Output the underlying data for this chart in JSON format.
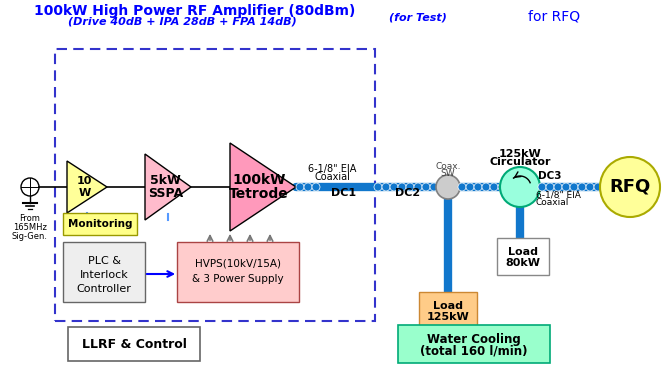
{
  "title1": "100kW High Power RF Amplifier (80dBm)",
  "title2": "(Drive 40dB + IPA 28dB + FPA 14dB)",
  "label_for_test": "(for Test)",
  "label_for_rfq": "for RFQ",
  "bg_color": "#ffffff",
  "dashed_box_color": "#3333cc",
  "amp1_label": [
    "10",
    "W"
  ],
  "amp2_label": [
    "5kW",
    "SSPA"
  ],
  "amp3_label": [
    "100kW",
    "Tetrode"
  ],
  "coaxial_label": [
    "6-1/8\" EIA",
    "Coaxial"
  ],
  "dc1_label": "DC1",
  "dc2_label": "DC2",
  "dc3_label": "DC3",
  "coax_sw_label": [
    "Coax.",
    "SW"
  ],
  "circulator_title": [
    "125kW",
    "Circulator"
  ],
  "coaxial2_label": [
    "6-1/8\" EIA",
    "Coaxial"
  ],
  "rfq_label": "RFQ",
  "load80_label": [
    "Load",
    "80kW"
  ],
  "load125_label": [
    "Load",
    "125kW"
  ],
  "monitoring_label": "Monitoring",
  "plc_label": [
    "PLC &",
    "Interlock",
    "Controller"
  ],
  "hvps_label": [
    "HVPS(10kV/15A)",
    "& 3 Power Supply"
  ],
  "llrf_label": "LLRF & Control",
  "water_cooling_label": [
    "Water Cooling",
    "(total 160 l/min)"
  ],
  "amp1_color": "#ffff99",
  "amp2_color": "#ffbbcc",
  "amp3_color": "#ff99bb",
  "rfq_color": "#ffff99",
  "circulator_color": "#99ffdd",
  "coax_sw_color": "#cccccc",
  "monitoring_color": "#ffff88",
  "plc_color": "#eeeeee",
  "hvps_color": "#ffcccc",
  "load80_color": "#eeeeee",
  "load125_color": "#ffcc88",
  "water_box_color": "#99ffcc",
  "llrf_box_color": "#ffffff",
  "line_color": "#1177cc",
  "signal_line_color": "#000000"
}
